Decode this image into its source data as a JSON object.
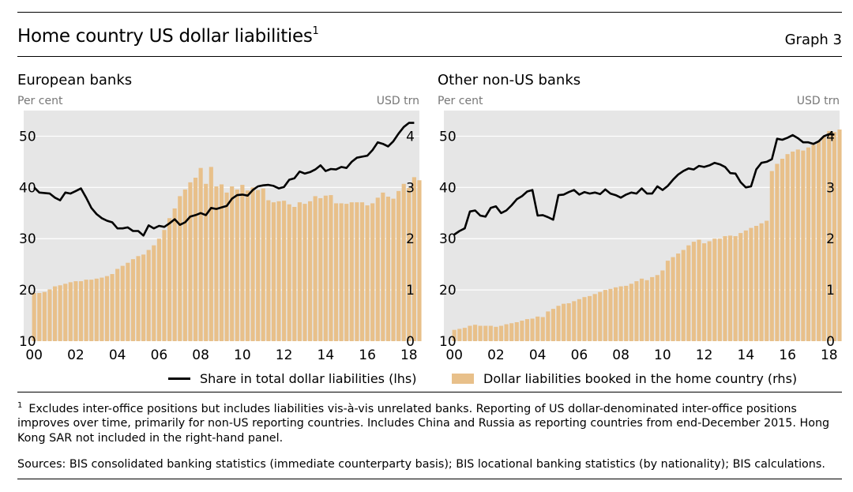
{
  "header": {
    "title": "Home country US dollar liabilities",
    "title_note": "1",
    "graph_label": "Graph 3"
  },
  "legend": {
    "line_label": "Share in total dollar liabilities (lhs)",
    "bar_label": "Dollar liabilities booked in the home country (rhs)"
  },
  "footnote": {
    "mark": "1",
    "text": "Excludes inter-office positions but includes liabilities vis-à-vis unrelated banks. Reporting of US dollar-denominated inter-office positions improves over time, primarily for non-US reporting countries. Includes China and Russia as reporting countries from end-December 2015. Hong Kong SAR not included in the right-hand panel."
  },
  "sources": "Sources: BIS consolidated banking statistics (immediate counterparty basis); BIS locational banking statistics (by nationality); BIS calculations.",
  "colors": {
    "bar": "#e8c08a",
    "line": "#000000",
    "plot_bg": "#e6e6e6",
    "grid": "#ffffff"
  },
  "chart_data": [
    {
      "type": "bar+line",
      "title": "European banks",
      "left_axis_label": "Per cent",
      "right_axis_label": "USD trn",
      "x_range": [
        1999.5,
        2018.5
      ],
      "ylim_left": [
        10,
        55
      ],
      "ylim_right": [
        0,
        4.5
      ],
      "left_ticks": [
        "10",
        "20",
        "30",
        "40",
        "50"
      ],
      "right_ticks": [
        "0",
        "1",
        "2",
        "3",
        "4"
      ],
      "x_ticks": [
        "00",
        "02",
        "04",
        "06",
        "08",
        "10",
        "12",
        "14",
        "16",
        "18"
      ],
      "grid": true,
      "bars_rhs": {
        "name": "Dollar liabilities booked in the home country (rhs)",
        "start": 2000.0,
        "step": 0.25,
        "values": [
          0.94,
          0.94,
          0.96,
          1.01,
          1.07,
          1.09,
          1.12,
          1.15,
          1.17,
          1.17,
          1.2,
          1.2,
          1.22,
          1.24,
          1.27,
          1.31,
          1.41,
          1.47,
          1.53,
          1.6,
          1.66,
          1.69,
          1.78,
          1.87,
          2.0,
          2.17,
          2.4,
          2.59,
          2.83,
          2.96,
          3.1,
          3.19,
          3.38,
          3.07,
          3.4,
          3.02,
          3.06,
          2.9,
          3.02,
          2.96,
          3.05,
          2.94,
          3.0,
          2.95,
          2.98,
          2.75,
          2.71,
          2.73,
          2.74,
          2.67,
          2.62,
          2.71,
          2.68,
          2.73,
          2.83,
          2.79,
          2.84,
          2.85,
          2.69,
          2.69,
          2.68,
          2.71,
          2.71,
          2.71,
          2.65,
          2.69,
          2.8,
          2.9,
          2.82,
          2.78,
          2.93,
          3.07,
          2.99,
          3.2,
          3.14,
          3.1
        ]
      },
      "line_lhs": {
        "name": "Share in total dollar liabilities (lhs)",
        "points": [
          [
            2000.0,
            40.0
          ],
          [
            2000.25,
            39.0
          ],
          [
            2000.75,
            38.8
          ],
          [
            2001.0,
            38.0
          ],
          [
            2001.25,
            37.5
          ],
          [
            2001.5,
            39.0
          ],
          [
            2001.75,
            38.8
          ],
          [
            2002.0,
            39.3
          ],
          [
            2002.25,
            39.8
          ],
          [
            2002.5,
            38.0
          ],
          [
            2002.75,
            36.0
          ],
          [
            2003.0,
            34.8
          ],
          [
            2003.25,
            34.0
          ],
          [
            2003.5,
            33.5
          ],
          [
            2003.75,
            33.2
          ],
          [
            2004.0,
            32.0
          ],
          [
            2004.25,
            32.0
          ],
          [
            2004.5,
            32.2
          ],
          [
            2004.75,
            31.5
          ],
          [
            2005.0,
            31.5
          ],
          [
            2005.25,
            30.6
          ],
          [
            2005.5,
            32.6
          ],
          [
            2005.75,
            32.0
          ],
          [
            2006.0,
            32.5
          ],
          [
            2006.25,
            32.3
          ],
          [
            2006.5,
            33.0
          ],
          [
            2006.75,
            33.8
          ],
          [
            2007.0,
            32.7
          ],
          [
            2007.25,
            33.2
          ],
          [
            2007.5,
            34.3
          ],
          [
            2007.75,
            34.6
          ],
          [
            2008.0,
            35.0
          ],
          [
            2008.25,
            34.6
          ],
          [
            2008.5,
            36.0
          ],
          [
            2008.75,
            35.8
          ],
          [
            2009.0,
            36.1
          ],
          [
            2009.25,
            36.4
          ],
          [
            2009.5,
            37.8
          ],
          [
            2009.75,
            38.5
          ],
          [
            2010.0,
            38.6
          ],
          [
            2010.25,
            38.4
          ],
          [
            2010.5,
            39.5
          ],
          [
            2010.75,
            40.2
          ],
          [
            2011.0,
            40.4
          ],
          [
            2011.25,
            40.5
          ],
          [
            2011.5,
            40.3
          ],
          [
            2011.75,
            39.8
          ],
          [
            2012.0,
            40.1
          ],
          [
            2012.25,
            41.5
          ],
          [
            2012.5,
            41.8
          ],
          [
            2012.75,
            43.1
          ],
          [
            2013.0,
            42.7
          ],
          [
            2013.25,
            43.0
          ],
          [
            2013.5,
            43.5
          ],
          [
            2013.75,
            44.3
          ],
          [
            2014.0,
            43.2
          ],
          [
            2014.25,
            43.6
          ],
          [
            2014.5,
            43.5
          ],
          [
            2014.75,
            44.0
          ],
          [
            2015.0,
            43.8
          ],
          [
            2015.25,
            45.0
          ],
          [
            2015.5,
            45.8
          ],
          [
            2015.75,
            46.0
          ],
          [
            2016.0,
            46.2
          ],
          [
            2016.25,
            47.3
          ],
          [
            2016.5,
            48.8
          ],
          [
            2016.75,
            48.5
          ],
          [
            2017.0,
            48.0
          ],
          [
            2017.25,
            49.0
          ],
          [
            2017.5,
            50.5
          ],
          [
            2017.75,
            51.8
          ],
          [
            2018.0,
            52.6
          ],
          [
            2018.25,
            52.6
          ]
        ]
      }
    },
    {
      "type": "bar+line",
      "title": "Other non-US banks",
      "left_axis_label": "Per cent",
      "right_axis_label": "USD trn",
      "x_range": [
        1999.5,
        2018.5
      ],
      "ylim_left": [
        10,
        55
      ],
      "ylim_right": [
        0,
        4.5
      ],
      "left_ticks": [
        "10",
        "20",
        "30",
        "40",
        "50"
      ],
      "right_ticks": [
        "0",
        "1",
        "2",
        "3",
        "4"
      ],
      "x_ticks": [
        "00",
        "02",
        "04",
        "06",
        "08",
        "10",
        "12",
        "14",
        "16",
        "18"
      ],
      "grid": true,
      "bars_rhs": {
        "name": "Dollar liabilities booked in the home country (rhs)",
        "start": 2000.0,
        "step": 0.25,
        "values": [
          0.22,
          0.24,
          0.26,
          0.3,
          0.32,
          0.3,
          0.3,
          0.3,
          0.28,
          0.3,
          0.33,
          0.35,
          0.37,
          0.4,
          0.43,
          0.44,
          0.48,
          0.47,
          0.58,
          0.63,
          0.69,
          0.73,
          0.74,
          0.78,
          0.82,
          0.86,
          0.88,
          0.92,
          0.96,
          1.0,
          1.02,
          1.05,
          1.07,
          1.08,
          1.12,
          1.17,
          1.22,
          1.19,
          1.25,
          1.29,
          1.38,
          1.57,
          1.64,
          1.71,
          1.78,
          1.87,
          1.94,
          1.98,
          1.91,
          1.95,
          2.0,
          2.0,
          2.05,
          2.06,
          2.05,
          2.11,
          2.16,
          2.21,
          2.25,
          2.3,
          2.35,
          3.32,
          3.46,
          3.56,
          3.65,
          3.7,
          3.74,
          3.72,
          3.78,
          3.83,
          3.9,
          4.0,
          4.1,
          4.08,
          4.13,
          4.1
        ]
      },
      "line_lhs": {
        "name": "Share in total dollar liabilities (lhs)",
        "points": [
          [
            2000.0,
            30.8
          ],
          [
            2000.25,
            31.5
          ],
          [
            2000.5,
            32.0
          ],
          [
            2000.75,
            35.3
          ],
          [
            2001.0,
            35.5
          ],
          [
            2001.25,
            34.5
          ],
          [
            2001.5,
            34.3
          ],
          [
            2001.75,
            36.0
          ],
          [
            2002.0,
            36.3
          ],
          [
            2002.25,
            35.0
          ],
          [
            2002.5,
            35.5
          ],
          [
            2002.75,
            36.5
          ],
          [
            2003.0,
            37.7
          ],
          [
            2003.25,
            38.3
          ],
          [
            2003.5,
            39.2
          ],
          [
            2003.75,
            39.5
          ],
          [
            2004.0,
            34.5
          ],
          [
            2004.25,
            34.6
          ],
          [
            2004.5,
            34.2
          ],
          [
            2004.75,
            33.7
          ],
          [
            2005.0,
            38.5
          ],
          [
            2005.25,
            38.6
          ],
          [
            2005.5,
            39.1
          ],
          [
            2005.75,
            39.5
          ],
          [
            2006.0,
            38.6
          ],
          [
            2006.25,
            39.1
          ],
          [
            2006.5,
            38.8
          ],
          [
            2006.75,
            39.0
          ],
          [
            2007.0,
            38.7
          ],
          [
            2007.25,
            39.6
          ],
          [
            2007.5,
            38.8
          ],
          [
            2007.75,
            38.5
          ],
          [
            2008.0,
            38.0
          ],
          [
            2008.25,
            38.6
          ],
          [
            2008.5,
            39.0
          ],
          [
            2008.75,
            38.8
          ],
          [
            2009.0,
            39.8
          ],
          [
            2009.25,
            38.8
          ],
          [
            2009.5,
            38.8
          ],
          [
            2009.75,
            40.2
          ],
          [
            2010.0,
            39.5
          ],
          [
            2010.25,
            40.3
          ],
          [
            2010.5,
            41.5
          ],
          [
            2010.75,
            42.5
          ],
          [
            2011.0,
            43.2
          ],
          [
            2011.25,
            43.7
          ],
          [
            2011.5,
            43.5
          ],
          [
            2011.75,
            44.2
          ],
          [
            2012.0,
            44.0
          ],
          [
            2012.25,
            44.3
          ],
          [
            2012.5,
            44.8
          ],
          [
            2012.75,
            44.5
          ],
          [
            2013.0,
            44.0
          ],
          [
            2013.25,
            42.8
          ],
          [
            2013.5,
            42.7
          ],
          [
            2013.75,
            41.0
          ],
          [
            2014.0,
            40.0
          ],
          [
            2014.25,
            40.2
          ],
          [
            2014.5,
            43.5
          ],
          [
            2014.75,
            44.8
          ],
          [
            2015.0,
            45.0
          ],
          [
            2015.25,
            45.5
          ],
          [
            2015.5,
            49.5
          ],
          [
            2015.75,
            49.3
          ],
          [
            2016.0,
            49.7
          ],
          [
            2016.25,
            50.2
          ],
          [
            2016.5,
            49.6
          ],
          [
            2016.75,
            48.8
          ],
          [
            2017.0,
            48.8
          ],
          [
            2017.25,
            48.5
          ],
          [
            2017.5,
            49.0
          ],
          [
            2017.75,
            50.0
          ],
          [
            2018.0,
            50.4
          ],
          [
            2018.25,
            50.3
          ]
        ]
      }
    }
  ]
}
